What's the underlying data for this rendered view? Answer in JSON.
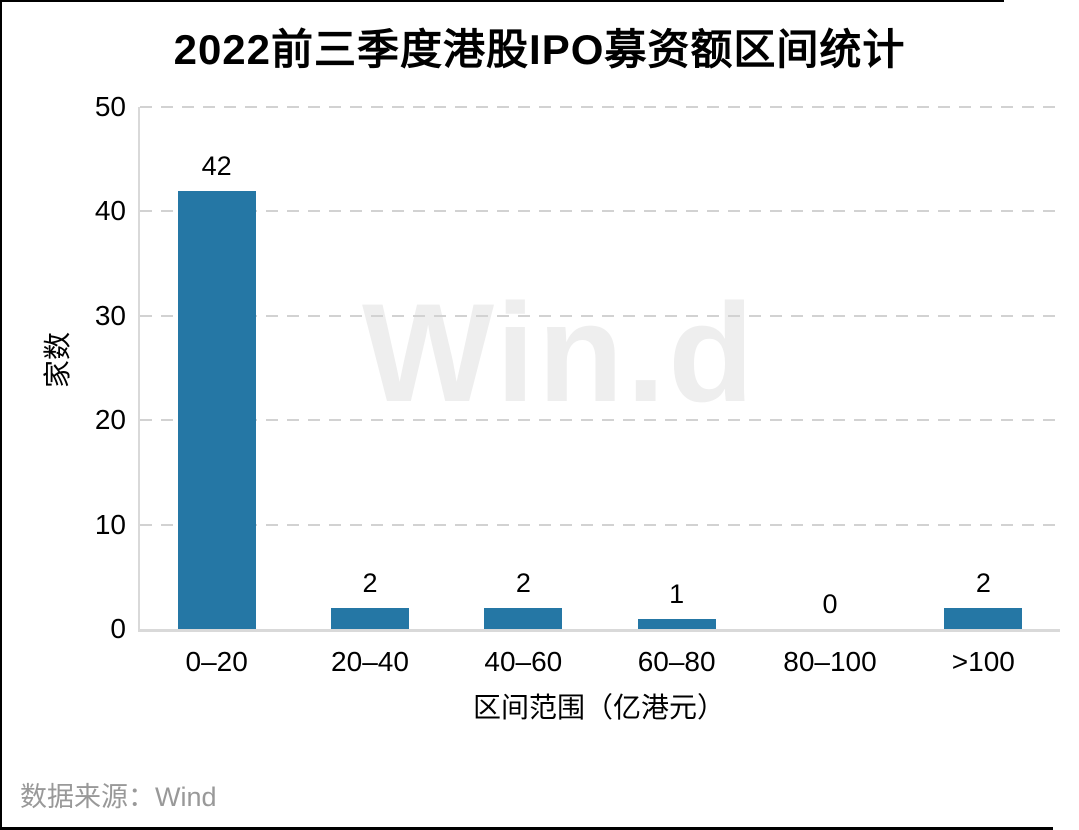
{
  "chart_data": {
    "type": "bar",
    "title": "2022前三季度港股IPO募资额区间统计",
    "categories": [
      "0–20",
      "20–40",
      "40–60",
      "60–80",
      "80–100",
      ">100"
    ],
    "values": [
      42,
      2,
      2,
      1,
      0,
      2
    ],
    "xlabel": "区间范围（亿港元）",
    "ylabel": "家数",
    "ylim": [
      0,
      50
    ],
    "yticks": [
      0,
      10,
      20,
      30,
      40,
      50
    ],
    "grid": "horizontal-dashed",
    "legend": "none",
    "bar_color": "#2577a5"
  },
  "watermark": {
    "text": "Win.d",
    "color": "#eeeeee"
  },
  "footer": {
    "source_label": "数据来源：Wind",
    "color": "#999999"
  },
  "colors": {
    "bar": "#2577a5",
    "grid": "#d2d2d2",
    "axis_line": "#d9d9d9",
    "title_text": "#000000",
    "frame_border": "#000000",
    "background": "#ffffff"
  }
}
